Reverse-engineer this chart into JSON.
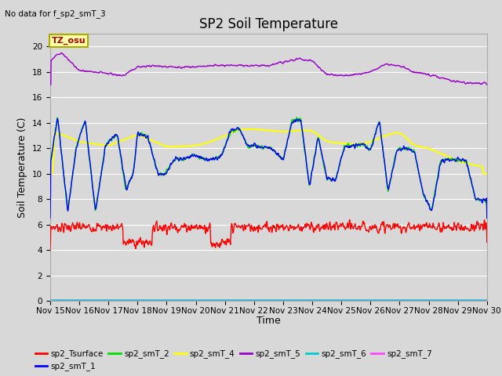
{
  "title": "SP2 Soil Temperature",
  "note": "No data for f_sp2_smT_3",
  "ylabel": "Soil Temperature (C)",
  "xlabel": "Time",
  "tz_label": "TZ_osu",
  "xlim_days": [
    15,
    30
  ],
  "ylim": [
    0,
    21
  ],
  "yticks": [
    0,
    2,
    4,
    6,
    8,
    10,
    12,
    14,
    16,
    18,
    20
  ],
  "xtick_labels": [
    "Nov 15",
    "Nov 16",
    "Nov 17",
    "Nov 18",
    "Nov 19",
    "Nov 20",
    "Nov 21",
    "Nov 22",
    "Nov 23",
    "Nov 24",
    "Nov 25",
    "Nov 26",
    "Nov 27",
    "Nov 28",
    "Nov 29",
    "Nov 30"
  ],
  "background_color": "#d8d8d8",
  "plot_bg_color": "#d8d8d8",
  "series_colors": {
    "sp2_Tsurface": "#ff0000",
    "sp2_smT_1": "#0000ff",
    "sp2_smT_2": "#00dd00",
    "sp2_smT_4": "#ffff00",
    "sp2_smT_5": "#9900cc",
    "sp2_smT_6": "#00cccc",
    "sp2_smT_7": "#ff44ff"
  },
  "legend_entries": [
    {
      "label": "sp2_Tsurface",
      "color": "#ff0000"
    },
    {
      "label": "sp2_smT_1",
      "color": "#0000ff"
    },
    {
      "label": "sp2_smT_2",
      "color": "#00dd00"
    },
    {
      "label": "sp2_smT_4",
      "color": "#ffff00"
    },
    {
      "label": "sp2_smT_5",
      "color": "#9900cc"
    },
    {
      "label": "sp2_smT_6",
      "color": "#00cccc"
    },
    {
      "label": "sp2_smT_7",
      "color": "#ff44ff"
    }
  ],
  "grid_color": "#ffffff",
  "title_fontsize": 12,
  "label_fontsize": 9,
  "tick_fontsize": 7.5
}
